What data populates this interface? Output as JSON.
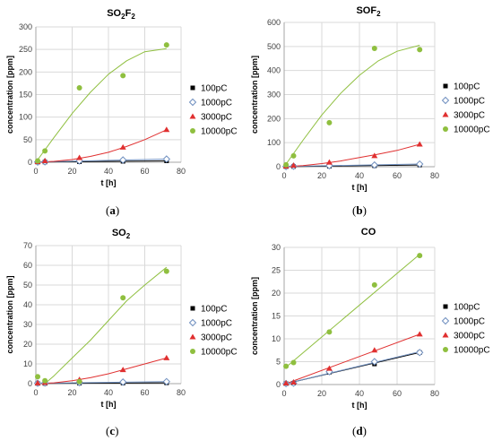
{
  "panel_labels": [
    "a",
    "b",
    "c",
    "d"
  ],
  "chart_data": [
    {
      "type": "scatter",
      "title_parts": [
        [
          "SO",
          "n"
        ],
        [
          "2",
          "sub"
        ],
        [
          "F",
          "n"
        ],
        [
          "2",
          "sub"
        ]
      ],
      "xlabel": "t [h]",
      "ylabel": "concentration [ppm]",
      "xlim": [
        0,
        80
      ],
      "ylim": [
        0,
        300
      ],
      "xticks": [
        0,
        20,
        40,
        60,
        80
      ],
      "yticks": [
        0,
        50,
        100,
        150,
        200,
        250,
        300
      ],
      "grid": true,
      "legend_position": "right",
      "series": [
        {
          "name": "100pC",
          "marker": "square",
          "color": "#000000",
          "x": [
            1,
            5,
            24,
            48,
            72
          ],
          "y": [
            0.3,
            0.5,
            1,
            2,
            3
          ],
          "trend": {
            "x": [
              1,
              72
            ],
            "y": [
              0.3,
              3
            ]
          }
        },
        {
          "name": "1000pC",
          "marker": "diamond-open",
          "color": "#6f8fbf",
          "x": [
            1,
            5,
            24,
            48,
            72
          ],
          "y": [
            0.5,
            1,
            3,
            5,
            7
          ],
          "trend": {
            "x": [
              1,
              72
            ],
            "y": [
              0.5,
              7
            ]
          }
        },
        {
          "name": "3000pC",
          "marker": "triangle",
          "color": "#e03030",
          "x": [
            1,
            5,
            24,
            48,
            72
          ],
          "y": [
            1,
            3,
            10,
            33,
            72
          ],
          "trend": {
            "x": [
              0,
              10,
              20,
              30,
              40,
              50,
              60,
              72
            ],
            "y": [
              0,
              2,
              6,
              13,
              22,
              35,
              50,
              72
            ]
          }
        },
        {
          "name": "10000pC",
          "marker": "circle",
          "color": "#8fbf3f",
          "x": [
            1,
            5,
            24,
            48,
            72
          ],
          "y": [
            3,
            25,
            165,
            192,
            260
          ],
          "trend": {
            "x": [
              0,
              10,
              20,
              30,
              40,
              50,
              60,
              72
            ],
            "y": [
              0,
              55,
              108,
              155,
              195,
              225,
              245,
              252
            ]
          }
        }
      ]
    },
    {
      "type": "scatter",
      "title_parts": [
        [
          "SOF",
          "n"
        ],
        [
          "2",
          "sub"
        ]
      ],
      "xlabel": "t [h]",
      "ylabel": "concentration [ppm]",
      "xlim": [
        0,
        80
      ],
      "ylim": [
        0,
        600
      ],
      "xticks": [
        0,
        20,
        40,
        60,
        80
      ],
      "yticks": [
        0,
        100,
        200,
        300,
        400,
        500,
        600
      ],
      "grid": true,
      "legend_position": "right",
      "series": [
        {
          "name": "100pC",
          "marker": "square",
          "color": "#000000",
          "x": [
            1,
            5,
            24,
            48,
            72
          ],
          "y": [
            0.5,
            1,
            2,
            4,
            7
          ],
          "trend": {
            "x": [
              1,
              72
            ],
            "y": [
              0.5,
              7
            ]
          }
        },
        {
          "name": "1000pC",
          "marker": "diamond-open",
          "color": "#6f8fbf",
          "x": [
            1,
            5,
            24,
            48,
            72
          ],
          "y": [
            1,
            2,
            4,
            7,
            11
          ],
          "trend": {
            "x": [
              1,
              72
            ],
            "y": [
              1,
              11
            ]
          }
        },
        {
          "name": "3000pC",
          "marker": "triangle",
          "color": "#e03030",
          "x": [
            1,
            5,
            24,
            48,
            72
          ],
          "y": [
            2,
            5,
            18,
            45,
            93
          ],
          "trend": {
            "x": [
              0,
              10,
              20,
              30,
              40,
              50,
              60,
              72
            ],
            "y": [
              0,
              5,
              13,
              24,
              38,
              52,
              68,
              93
            ]
          }
        },
        {
          "name": "10000pC",
          "marker": "circle",
          "color": "#8fbf3f",
          "x": [
            1,
            5,
            24,
            48,
            72
          ],
          "y": [
            8,
            45,
            183,
            492,
            487
          ],
          "trend": {
            "x": [
              0,
              10,
              20,
              30,
              40,
              50,
              60,
              72
            ],
            "y": [
              0,
              110,
              215,
              305,
              380,
              440,
              480,
              505
            ]
          }
        }
      ]
    },
    {
      "type": "scatter",
      "title_parts": [
        [
          "SO",
          "n"
        ],
        [
          "2",
          "sub"
        ]
      ],
      "xlabel": "t [h]",
      "ylabel": "concentration [ppm]",
      "xlim": [
        0,
        80
      ],
      "ylim": [
        0,
        70
      ],
      "xticks": [
        0,
        20,
        40,
        60,
        80
      ],
      "yticks": [
        0,
        10,
        20,
        30,
        40,
        50,
        60,
        70
      ],
      "grid": true,
      "legend_position": "right",
      "series": [
        {
          "name": "100pC",
          "marker": "square",
          "color": "#000000",
          "x": [
            1,
            5,
            24,
            48,
            72
          ],
          "y": [
            0.1,
            0.1,
            0.2,
            0.3,
            0.4
          ],
          "trend": {
            "x": [
              1,
              72
            ],
            "y": [
              0.1,
              0.4
            ]
          }
        },
        {
          "name": "1000pC",
          "marker": "diamond-open",
          "color": "#6f8fbf",
          "x": [
            1,
            5,
            24,
            48,
            72
          ],
          "y": [
            0.2,
            0.3,
            0.5,
            0.8,
            1
          ],
          "trend": {
            "x": [
              1,
              72
            ],
            "y": [
              0.2,
              1
            ]
          }
        },
        {
          "name": "3000pC",
          "marker": "triangle",
          "color": "#e03030",
          "x": [
            1,
            5,
            24,
            48,
            72
          ],
          "y": [
            0.3,
            0.5,
            2,
            7,
            13
          ],
          "trend": {
            "x": [
              0,
              10,
              20,
              30,
              40,
              50,
              60,
              72
            ],
            "y": [
              0,
              0.4,
              1.5,
              3,
              5,
              7.5,
              10,
              13
            ]
          }
        },
        {
          "name": "10000pC",
          "marker": "circle",
          "color": "#8fbf3f",
          "x": [
            1,
            5,
            24,
            48,
            72
          ],
          "y": [
            3.5,
            1.5,
            1,
            43.5,
            57
          ],
          "trend": {
            "x": [
              5,
              10,
              20,
              30,
              40,
              50,
              60,
              72
            ],
            "y": [
              0,
              4,
              13,
              22,
              32,
              42,
              50,
              59
            ]
          }
        }
      ]
    },
    {
      "type": "scatter",
      "title_parts": [
        [
          "CO",
          "n"
        ]
      ],
      "xlabel": "t [h]",
      "ylabel": "concentration [ppm]",
      "xlim": [
        0,
        80
      ],
      "ylim": [
        0,
        30
      ],
      "xticks": [
        0,
        20,
        40,
        60,
        80
      ],
      "yticks": [
        0,
        5,
        10,
        15,
        20,
        25,
        30
      ],
      "grid": true,
      "legend_position": "right",
      "series": [
        {
          "name": "100pC",
          "marker": "square",
          "color": "#000000",
          "x": [
            1,
            5,
            24,
            48,
            72
          ],
          "y": [
            0.2,
            0.3,
            2.7,
            4.5,
            7
          ],
          "trend": {
            "x": [
              1,
              72
            ],
            "y": [
              0.2,
              7
            ]
          }
        },
        {
          "name": "1000pC",
          "marker": "diamond-open",
          "color": "#6f8fbf",
          "x": [
            1,
            5,
            24,
            48,
            72
          ],
          "y": [
            0.2,
            0.3,
            2.8,
            5,
            7
          ],
          "trend": {
            "x": [
              1,
              72
            ],
            "y": [
              0.2,
              7.2
            ]
          }
        },
        {
          "name": "3000pC",
          "marker": "triangle",
          "color": "#e03030",
          "x": [
            1,
            5,
            24,
            48,
            72
          ],
          "y": [
            0.3,
            0.5,
            3.5,
            7.5,
            11
          ],
          "trend": {
            "x": [
              1,
              72
            ],
            "y": [
              0.2,
              11
            ]
          }
        },
        {
          "name": "10000pC",
          "marker": "circle",
          "color": "#8fbf3f",
          "x": [
            1,
            5,
            24,
            48,
            72
          ],
          "y": [
            4,
            4.8,
            11.5,
            21.8,
            28.2
          ],
          "trend": {
            "x": [
              1,
              72
            ],
            "y": [
              3.8,
              28.5
            ]
          }
        }
      ]
    }
  ]
}
